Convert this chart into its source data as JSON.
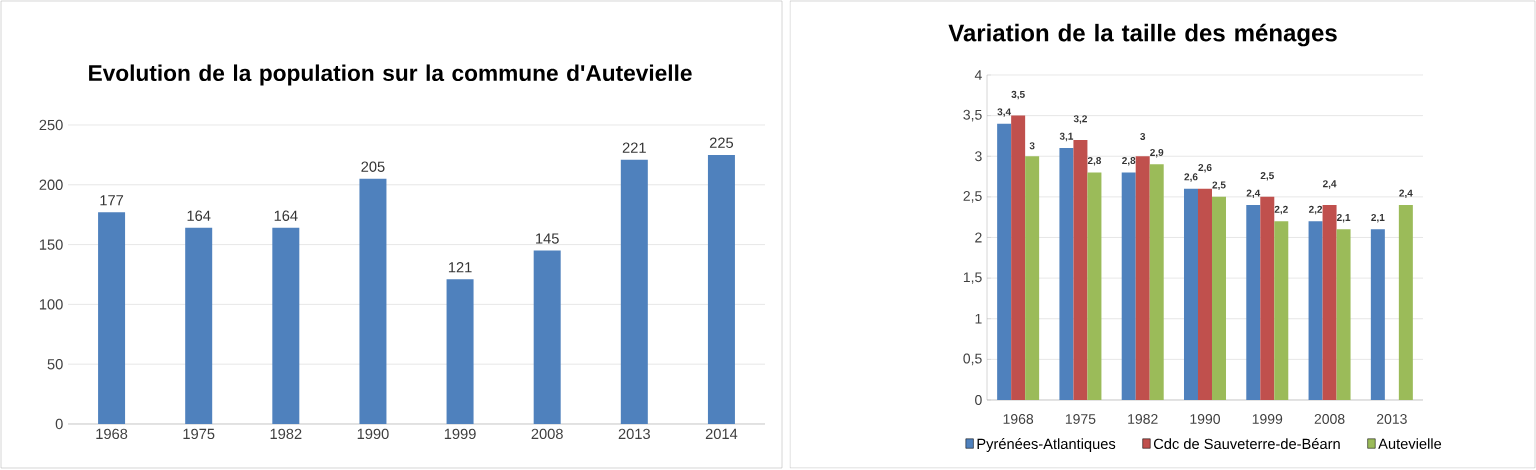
{
  "chart_data": [
    {
      "type": "bar",
      "title": "Evolution de la population sur la commune d'Autevielle",
      "categories": [
        "1968",
        "1975",
        "1982",
        "1990",
        "1999",
        "2008",
        "2013",
        "2014"
      ],
      "values": [
        177,
        164,
        164,
        205,
        121,
        145,
        221,
        225
      ],
      "color": "#4f81bd",
      "ylim": [
        0,
        250
      ],
      "yticks": [
        0,
        50,
        100,
        150,
        200,
        250
      ],
      "grid": "y",
      "data_labels": true
    },
    {
      "type": "bar",
      "title": "Variation de la taille des ménages",
      "categories": [
        "1968",
        "1975",
        "1982",
        "1990",
        "1999",
        "2008",
        "2013"
      ],
      "series": [
        {
          "name": "Pyrénées-Atlantiques",
          "color": "#4f81bd",
          "values": [
            3.4,
            3.1,
            2.8,
            2.6,
            2.4,
            2.2,
            2.1
          ],
          "value_labels": [
            "3,4",
            "3,1",
            "2,8",
            "2,6",
            "2,4",
            "2,2",
            "2,1"
          ]
        },
        {
          "name": "Cdc de Sauveterre-de-Béarn",
          "color": "#c0504d",
          "values": [
            3.5,
            3.2,
            3,
            2.6,
            2.5,
            2.4,
            null
          ],
          "value_labels": [
            "3,5",
            "3,2",
            "3",
            "2,6",
            "2,5",
            "2,4",
            null
          ]
        },
        {
          "name": "Autevielle",
          "color": "#9bbb59",
          "values": [
            3,
            2.8,
            2.9,
            2.5,
            2.2,
            2.1,
            2.4
          ],
          "value_labels": [
            "3",
            "2,8",
            "2,9",
            "2,5",
            "2,2",
            "2,1",
            "2,4"
          ]
        }
      ],
      "ylim": [
        0,
        4
      ],
      "yticks": [
        0,
        {
          "value": 0.5,
          "label": "0,5"
        },
        1,
        {
          "value": 1.5,
          "label": "1,5"
        },
        2,
        {
          "value": 2.5,
          "label": "2,5"
        },
        3,
        {
          "value": 3.5,
          "label": "3,5"
        },
        4
      ],
      "grid": "y",
      "legend": "bottom"
    }
  ]
}
